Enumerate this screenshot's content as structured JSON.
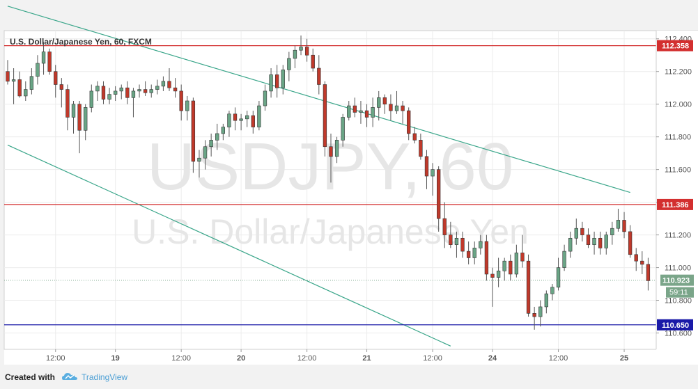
{
  "symbol_title": "U.S. Dollar/Japanese Yen, 60, FXCM",
  "watermark": {
    "ticker": "USDJPY, 60",
    "name": "U.S. Dollar/Japanese Yen"
  },
  "footer": {
    "created_with": "Created with",
    "brand": "TradingView"
  },
  "colors": {
    "up": "#6aa586",
    "down": "#c0392b",
    "resistance": "#d32f2f",
    "support": "#1a1aa8",
    "channel": "#3aa68a",
    "price": "#7aa589",
    "wick": "#555555"
  },
  "chart_data": {
    "type": "candlestick",
    "interval": "60",
    "ylim": [
      110.5,
      112.45
    ],
    "y_ticks": [
      "112.400",
      "112.200",
      "112.000",
      "111.800",
      "111.600",
      "111.400",
      "111.200",
      "111.000",
      "110.800",
      "110.600"
    ],
    "x_ticks": [
      "12:00",
      "19",
      "12:00",
      "20",
      "12:00",
      "21",
      "12:00",
      "24",
      "12:00",
      "25"
    ],
    "horizontal_levels": [
      {
        "label": "112.358",
        "value": 112.358,
        "role": "resistance"
      },
      {
        "label": "111.386",
        "value": 111.386,
        "role": "resistance"
      },
      {
        "label": "110.650",
        "value": 110.65,
        "role": "support"
      }
    ],
    "current_price": {
      "label": "110.923",
      "value": 110.923,
      "countdown": "59:11"
    },
    "channel_lines": [
      {
        "from": [
          0,
          112.6
        ],
        "to": [
          104,
          111.46
        ]
      },
      {
        "from": [
          0,
          111.75
        ],
        "to": [
          74,
          110.52
        ]
      }
    ],
    "candles": [
      [
        112.2,
        112.27,
        112.12,
        112.14
      ],
      [
        112.14,
        112.22,
        112.0,
        112.15
      ],
      [
        112.15,
        112.2,
        112.04,
        112.05
      ],
      [
        112.05,
        112.14,
        112.02,
        112.09
      ],
      [
        112.09,
        112.22,
        112.06,
        112.17
      ],
      [
        112.17,
        112.3,
        112.12,
        112.25
      ],
      [
        112.25,
        112.38,
        112.18,
        112.32
      ],
      [
        112.32,
        112.34,
        112.18,
        112.2
      ],
      [
        112.2,
        112.24,
        112.04,
        112.12
      ],
      [
        112.12,
        112.16,
        111.98,
        112.09
      ],
      [
        112.09,
        112.12,
        111.84,
        111.92
      ],
      [
        111.92,
        112.02,
        111.82,
        112.0
      ],
      [
        112.0,
        112.02,
        111.7,
        111.84
      ],
      [
        111.84,
        112.0,
        111.78,
        111.98
      ],
      [
        111.98,
        112.12,
        111.95,
        112.08
      ],
      [
        112.08,
        112.14,
        112.02,
        112.11
      ],
      [
        112.11,
        112.14,
        112.0,
        112.03
      ],
      [
        112.03,
        112.1,
        112.0,
        112.06
      ],
      [
        112.06,
        112.11,
        112.02,
        112.08
      ],
      [
        112.08,
        112.12,
        112.03,
        112.1
      ],
      [
        112.1,
        112.14,
        112.0,
        112.04
      ],
      [
        112.04,
        112.1,
        111.92,
        112.08
      ],
      [
        112.08,
        112.12,
        112.04,
        112.09
      ],
      [
        112.09,
        112.14,
        112.05,
        112.07
      ],
      [
        112.07,
        112.12,
        112.04,
        112.09
      ],
      [
        112.09,
        112.15,
        112.06,
        112.11
      ],
      [
        112.11,
        112.17,
        112.08,
        112.14
      ],
      [
        112.14,
        112.22,
        112.08,
        112.1
      ],
      [
        112.1,
        112.16,
        112.04,
        112.08
      ],
      [
        112.08,
        112.12,
        111.9,
        111.96
      ],
      [
        111.96,
        112.05,
        111.9,
        112.02
      ],
      [
        112.02,
        112.04,
        111.58,
        111.65
      ],
      [
        111.65,
        111.72,
        111.55,
        111.67
      ],
      [
        111.67,
        111.78,
        111.6,
        111.74
      ],
      [
        111.74,
        111.82,
        111.68,
        111.78
      ],
      [
        111.78,
        111.88,
        111.72,
        111.82
      ],
      [
        111.82,
        111.88,
        111.78,
        111.86
      ],
      [
        111.86,
        111.96,
        111.8,
        111.94
      ],
      [
        111.94,
        111.98,
        111.84,
        111.9
      ],
      [
        111.9,
        111.94,
        111.84,
        111.91
      ],
      [
        111.91,
        111.96,
        111.86,
        111.93
      ],
      [
        111.93,
        111.96,
        111.82,
        111.86
      ],
      [
        111.86,
        112.02,
        111.84,
        111.99
      ],
      [
        111.99,
        112.12,
        111.96,
        112.08
      ],
      [
        112.08,
        112.22,
        112.04,
        112.18
      ],
      [
        112.18,
        112.24,
        112.04,
        112.1
      ],
      [
        112.1,
        112.24,
        112.06,
        112.21
      ],
      [
        112.21,
        112.32,
        112.14,
        112.28
      ],
      [
        112.28,
        112.36,
        112.22,
        112.33
      ],
      [
        112.33,
        112.42,
        112.3,
        112.35
      ],
      [
        112.35,
        112.4,
        112.26,
        112.3
      ],
      [
        112.3,
        112.34,
        112.2,
        112.22
      ],
      [
        112.22,
        112.3,
        112.06,
        112.12
      ],
      [
        112.12,
        112.14,
        111.68,
        111.74
      ],
      [
        111.74,
        111.82,
        111.52,
        111.68
      ],
      [
        111.68,
        111.8,
        111.64,
        111.78
      ],
      [
        111.78,
        111.94,
        111.74,
        111.92
      ],
      [
        111.92,
        112.02,
        111.9,
        111.99
      ],
      [
        111.99,
        112.04,
        111.92,
        111.95
      ],
      [
        111.95,
        112.02,
        111.88,
        111.96
      ],
      [
        111.96,
        112.0,
        111.86,
        111.92
      ],
      [
        111.92,
        112.04,
        111.86,
        111.98
      ],
      [
        111.98,
        112.08,
        111.9,
        112.04
      ],
      [
        112.04,
        112.06,
        111.94,
        112.0
      ],
      [
        112.0,
        112.06,
        111.9,
        111.96
      ],
      [
        111.96,
        112.08,
        111.94,
        111.99
      ],
      [
        111.99,
        112.02,
        111.88,
        111.96
      ],
      [
        111.96,
        111.98,
        111.78,
        111.82
      ],
      [
        111.82,
        111.86,
        111.76,
        111.78
      ],
      [
        111.78,
        111.82,
        111.66,
        111.68
      ],
      [
        111.68,
        111.72,
        111.48,
        111.56
      ],
      [
        111.56,
        111.64,
        111.44,
        111.6
      ],
      [
        111.6,
        111.62,
        111.22,
        111.3
      ],
      [
        111.3,
        111.4,
        111.12,
        111.2
      ],
      [
        111.2,
        111.28,
        111.12,
        111.14
      ],
      [
        111.14,
        111.22,
        111.06,
        111.18
      ],
      [
        111.18,
        111.22,
        111.06,
        111.1
      ],
      [
        111.1,
        111.16,
        111.02,
        111.06
      ],
      [
        111.06,
        111.16,
        111.02,
        111.12
      ],
      [
        111.12,
        111.2,
        111.08,
        111.16
      ],
      [
        111.16,
        111.2,
        110.92,
        110.96
      ],
      [
        110.96,
        111.0,
        110.76,
        110.94
      ],
      [
        110.94,
        111.06,
        110.88,
        110.98
      ],
      [
        110.98,
        111.06,
        110.92,
        111.04
      ],
      [
        111.04,
        111.08,
        110.92,
        110.96
      ],
      [
        110.96,
        111.14,
        110.94,
        111.09
      ],
      [
        111.09,
        111.2,
        111.0,
        111.04
      ],
      [
        111.04,
        111.08,
        110.7,
        110.72
      ],
      [
        110.72,
        110.76,
        110.62,
        110.7
      ],
      [
        110.7,
        110.8,
        110.64,
        110.76
      ],
      [
        110.76,
        110.86,
        110.72,
        110.84
      ],
      [
        110.84,
        110.9,
        110.8,
        110.88
      ],
      [
        110.88,
        111.06,
        110.86,
        111.0
      ],
      [
        111.0,
        111.14,
        110.98,
        111.1
      ],
      [
        111.1,
        111.22,
        111.06,
        111.18
      ],
      [
        111.18,
        111.3,
        111.14,
        111.24
      ],
      [
        111.24,
        111.28,
        111.16,
        111.2
      ],
      [
        111.2,
        111.24,
        111.12,
        111.14
      ],
      [
        111.14,
        111.22,
        111.08,
        111.18
      ],
      [
        111.18,
        111.22,
        111.08,
        111.12
      ],
      [
        111.12,
        111.22,
        111.08,
        111.2
      ],
      [
        111.2,
        111.28,
        111.14,
        111.24
      ],
      [
        111.24,
        111.36,
        111.22,
        111.29
      ],
      [
        111.29,
        111.34,
        111.18,
        111.22
      ],
      [
        111.22,
        111.26,
        111.06,
        111.08
      ],
      [
        111.08,
        111.12,
        110.98,
        111.04
      ],
      [
        111.04,
        111.1,
        110.96,
        111.02
      ],
      [
        111.02,
        111.06,
        110.86,
        110.92
      ]
    ]
  }
}
